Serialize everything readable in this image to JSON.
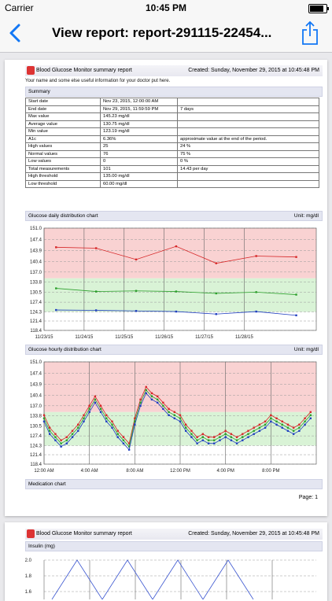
{
  "status_bar": {
    "carrier": "Carrier",
    "time": "10:45 PM",
    "battery_level": 0.9
  },
  "nav": {
    "back_icon": "chevron-left-icon",
    "title": "View report: report-291115-22454...",
    "share_icon": "share-icon"
  },
  "report": {
    "app_name": "Blood Glucose Monitor summary report",
    "created": "Created: Sunday, November 29, 2015 at 10:45:48 PM",
    "subtitle": "Your name and some else useful information for your doctor put here.",
    "summary_title": "Summary",
    "summary_rows": [
      [
        "Start date",
        "Nov 23, 2015, 12:00:00 AM",
        ""
      ],
      [
        "End date",
        "Nov 29, 2015, 11:59:59 PM",
        "7 days"
      ],
      [
        "Max value",
        "145.23 mg/dl",
        ""
      ],
      [
        "Average value",
        "130.75 mg/dl",
        ""
      ],
      [
        "Min value",
        "123.19 mg/dl",
        ""
      ],
      [
        "A1c",
        "6.36%",
        "approximate value at the end of the period."
      ],
      [
        "High values",
        "25",
        "24 %"
      ],
      [
        "Normal values",
        "76",
        "75 %"
      ],
      [
        "Low values",
        "0",
        "0 %"
      ],
      [
        "Total measurements",
        "101",
        "14.43 per day"
      ],
      [
        "High threshold",
        "135.00 mg/dl",
        ""
      ],
      [
        "Low threshold",
        "60.00 mg/dl",
        ""
      ]
    ],
    "daily_chart_title": "Glucose daily distribution chart",
    "hourly_chart_title": "Glucose hourly distribution chart",
    "unit": "Unit: mg/dl",
    "medication_title": "Medication chart",
    "page_label": "Page: 1",
    "page2_insulin_title": "Insulin (mg)"
  },
  "chart_data": [
    {
      "type": "line",
      "title": "Glucose daily distribution chart",
      "y_ticks": [
        118.4,
        121.4,
        124.3,
        127.4,
        130.5,
        133.8,
        137.0,
        140.4,
        143.9,
        147.4,
        151.0
      ],
      "ylim": [
        118.4,
        151.0
      ],
      "categories": [
        "11/23/15",
        "11/24/15",
        "11/25/15",
        "11/26/15",
        "11/27/15",
        "11/28/15"
      ],
      "x": [
        0.3,
        1.3,
        2.3,
        3.3,
        4.3,
        5.3,
        6.3
      ],
      "series": [
        {
          "color": "#d62728",
          "values": [
            144.9,
            144.6,
            141.0,
            145.2,
            139.8,
            142.1,
            141.8
          ]
        },
        {
          "color": "#2ca02c",
          "values": [
            131.8,
            130.8,
            131.0,
            130.8,
            130.2,
            130.6,
            129.8
          ]
        },
        {
          "color": "#1f3fbf",
          "values": [
            124.9,
            124.8,
            124.6,
            124.4,
            123.6,
            124.4,
            123.2
          ]
        }
      ],
      "bands": {
        "high_color": "#f9d2d2",
        "normal_color": "#d9f3d6"
      },
      "grid": true
    },
    {
      "type": "line",
      "title": "Glucose hourly distribution chart",
      "y_ticks": [
        118.4,
        121.4,
        124.3,
        127.4,
        130.5,
        133.8,
        137.0,
        140.4,
        143.9,
        147.4,
        151.0
      ],
      "ylim": [
        118.4,
        151.0
      ],
      "categories": [
        "12:00 AM",
        "4:00 AM",
        "8:00 AM",
        "12:00 PM",
        "4:00 PM",
        "8:00 PM"
      ],
      "x": [
        0,
        0.5,
        1,
        1.5,
        2,
        2.5,
        3,
        3.5,
        4,
        4.5,
        5,
        5.5,
        6,
        6.5,
        7,
        7.5,
        8,
        8.5,
        9,
        9.5,
        10,
        10.5,
        11,
        11.5,
        12,
        12.5,
        13,
        13.5,
        14,
        14.5,
        15,
        15.5,
        16,
        16.5,
        17,
        17.5,
        18,
        18.5,
        19,
        19.5,
        20,
        20.5,
        21,
        21.5,
        22,
        22.5,
        23,
        23.5
      ],
      "series": [
        {
          "color": "#d62728",
          "values": [
            134,
            130,
            128,
            126,
            127,
            129,
            131,
            134,
            137,
            140,
            137,
            134,
            132,
            129,
            127,
            125,
            133,
            139,
            143,
            141,
            140,
            138,
            136,
            135,
            134,
            131,
            129,
            127,
            128,
            127,
            127,
            128,
            129,
            128,
            127,
            128,
            129,
            130,
            131,
            132,
            134,
            133,
            132,
            131,
            130,
            131,
            133,
            135
          ]
        },
        {
          "color": "#2ca02c",
          "values": [
            133,
            129,
            127,
            125,
            126,
            128,
            130,
            133,
            136,
            139,
            136,
            133,
            131,
            128,
            126,
            124,
            132,
            138,
            142,
            140,
            139,
            137,
            135,
            134,
            133,
            130,
            128,
            126,
            127,
            126,
            126,
            127,
            128,
            127,
            126,
            127,
            128,
            129,
            130,
            131,
            133,
            132,
            131,
            130,
            129,
            130,
            132,
            134
          ]
        },
        {
          "color": "#1f3fbf",
          "values": [
            132,
            128,
            126,
            124,
            125,
            127,
            129,
            132,
            135,
            138,
            135,
            132,
            130,
            127,
            125,
            123,
            131,
            137,
            141,
            139,
            138,
            136,
            134,
            133,
            132,
            129,
            127,
            125,
            126,
            125,
            125,
            126,
            127,
            126,
            125,
            126,
            127,
            128,
            129,
            130,
            132,
            131,
            130,
            129,
            128,
            129,
            131,
            133
          ]
        }
      ],
      "bands": {
        "high_color": "#f9d2d2",
        "normal_color": "#d9f3d6"
      },
      "grid": true
    },
    {
      "type": "line",
      "title": "Insulin (mg)",
      "y_ticks": [
        1.6,
        1.8,
        2.0
      ],
      "ylim": [
        1.5,
        2.0
      ],
      "series": [
        {
          "color": "#3a55d0",
          "values": [
            1.5,
            2.0,
            1.5,
            2.0,
            1.5,
            2.0,
            1.5,
            2.0,
            1.5
          ]
        }
      ],
      "grid": true
    }
  ]
}
